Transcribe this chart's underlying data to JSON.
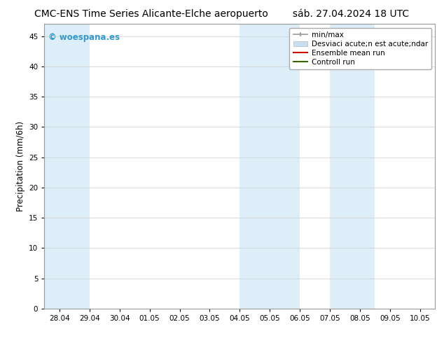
{
  "title_left": "CMC-ENS Time Series Alicante-Elche aeropuerto",
  "title_right": "sáb. 27.04.2024 18 UTC",
  "ylabel": "Precipitation (mm/6h)",
  "background_color": "#ffffff",
  "plot_bg_color": "#ffffff",
  "ylim": [
    0,
    47
  ],
  "yticks": [
    0,
    5,
    10,
    15,
    20,
    25,
    30,
    35,
    40,
    45
  ],
  "xtick_labels": [
    "28.04",
    "29.04",
    "30.04",
    "01.05",
    "02.05",
    "03.05",
    "04.05",
    "05.05",
    "06.05",
    "07.05",
    "08.05",
    "09.05",
    "10.05"
  ],
  "xtick_positions": [
    0,
    1,
    2,
    3,
    4,
    5,
    6,
    7,
    8,
    9,
    10,
    11,
    12
  ],
  "xlim": [
    -0.5,
    12.5
  ],
  "shaded_bands": [
    {
      "x_start": -0.5,
      "x_end": 1.0,
      "color": "#ddeef8"
    },
    {
      "x_start": 6.0,
      "x_end": 8.0,
      "color": "#ddeef8"
    },
    {
      "x_start": 9.0,
      "x_end": 10.5,
      "color": "#ddeef8"
    }
  ],
  "legend_entries": [
    {
      "label": "min/max",
      "color": "#aaaaaa",
      "lw": 1.5
    },
    {
      "label": "Desviaci acute;n est acute;ndar",
      "color": "#c8ddf0",
      "lw": 8
    },
    {
      "label": "Ensemble mean run",
      "color": "#cc0000",
      "lw": 1.5
    },
    {
      "label": "Controll run",
      "color": "#336600",
      "lw": 1.5
    }
  ],
  "watermark_text": "© woespana.es",
  "watermark_color": "#3399cc",
  "title_fontsize": 10,
  "axis_fontsize": 8.5,
  "tick_fontsize": 7.5,
  "legend_fontsize": 7.5
}
